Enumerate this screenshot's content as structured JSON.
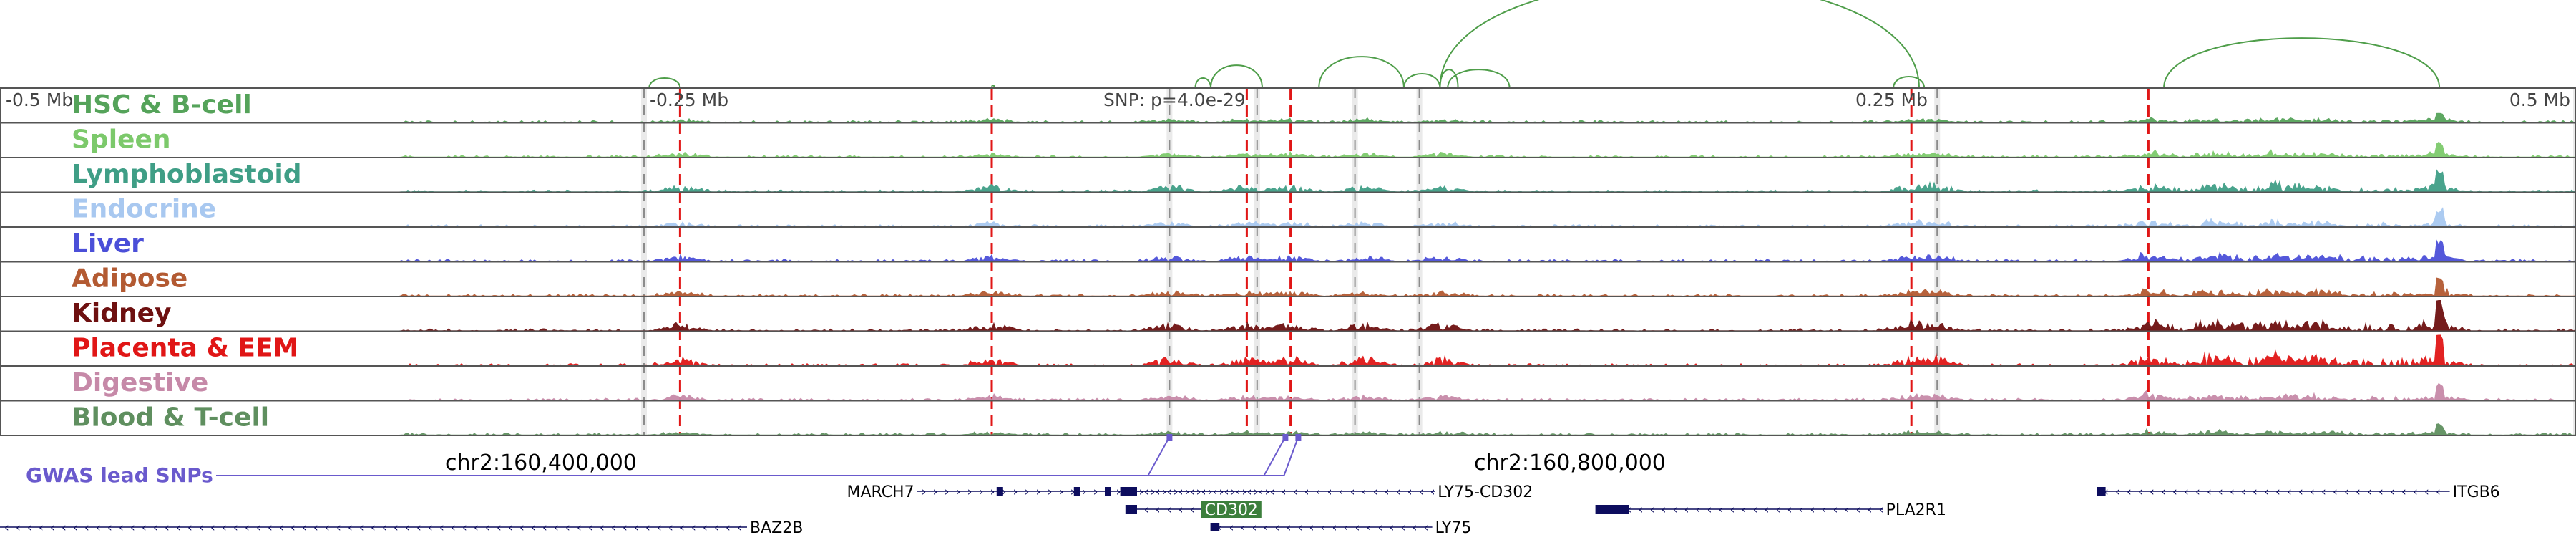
{
  "axis": {
    "ticks": [
      {
        "label": "-0.5 Mb",
        "mb": -0.5
      },
      {
        "label": "-0.25 Mb",
        "mb": -0.25
      },
      {
        "label": "0.25 Mb",
        "mb": 0.25
      },
      {
        "label": "0.5 Mb",
        "mb": 0.5
      }
    ],
    "range_mb": [
      -0.5,
      0.5
    ]
  },
  "lead_snp": {
    "label": "SNP: p=4.0e-29",
    "mb": 0.0
  },
  "tracks": [
    {
      "name": "HSC & B-cell",
      "color": "#55a35a",
      "seed": 11,
      "scale": 0.35
    },
    {
      "name": "Spleen",
      "color": "#7cc96b",
      "seed": 12,
      "scale": 0.45
    },
    {
      "name": "Lymphoblastoid",
      "color": "#3f9e86",
      "seed": 13,
      "scale": 0.8
    },
    {
      "name": "Endocrine",
      "color": "#a8c8f0",
      "seed": 14,
      "scale": 0.55
    },
    {
      "name": "Liver",
      "color": "#4b4fd8",
      "seed": 15,
      "scale": 0.7
    },
    {
      "name": "Adipose",
      "color": "#b35a32",
      "seed": 16,
      "scale": 0.6
    },
    {
      "name": "Kidney",
      "color": "#6e1010",
      "seed": 17,
      "scale": 0.95
    },
    {
      "name": "Placenta & EEM",
      "color": "#e01616",
      "seed": 18,
      "scale": 1.0
    },
    {
      "name": "Digestive",
      "color": "#c689a8",
      "seed": 19,
      "scale": 0.6
    },
    {
      "name": "Blood & T-cell",
      "color": "#5f8f5f",
      "seed": 20,
      "scale": 0.35
    }
  ],
  "red_markers_mb": [
    -0.236,
    -0.115,
    -0.016,
    0.001,
    0.242,
    0.334
  ],
  "grey_markers_mb": [
    -0.25,
    -0.046,
    -0.012,
    0.026,
    0.051,
    0.252,
    0.5
  ],
  "gwas": {
    "label": "GWAS lead SNPs",
    "coord_left": "chr2:160,400,000",
    "coord_right": "chr2:160,800,000",
    "snps_mb": [
      -0.046,
      -0.001,
      0.004
    ]
  },
  "arcs": [
    {
      "from": -0.248,
      "to": -0.236,
      "height": 14
    },
    {
      "from": -0.115,
      "to": -0.114,
      "height": 4
    },
    {
      "from": -0.036,
      "to": -0.03,
      "height": 14
    },
    {
      "from": -0.03,
      "to": -0.01,
      "height": 32
    },
    {
      "from": 0.012,
      "to": 0.045,
      "height": 44
    },
    {
      "from": 0.045,
      "to": 0.059,
      "height": 20
    },
    {
      "from": 0.059,
      "to": 0.245,
      "height": 150
    },
    {
      "from": 0.059,
      "to": 0.066,
      "height": 26
    },
    {
      "from": 0.062,
      "to": 0.086,
      "height": 26
    },
    {
      "from": 0.235,
      "to": 0.247,
      "height": 16
    },
    {
      "from": 0.34,
      "to": 0.447,
      "height": 70
    }
  ],
  "genes": [
    {
      "name": "MARCH7",
      "start": -0.144,
      "end": -0.005,
      "strand": "+",
      "row": 0,
      "label_side": "left",
      "exons": [
        -0.112,
        -0.082,
        -0.07,
        -0.064,
        -0.062
      ]
    },
    {
      "name": "LY75-CD302",
      "start": -0.062,
      "end": 0.057,
      "strand": "-",
      "row": 0,
      "label_side": "right",
      "exons": [
        -0.062,
        -0.06
      ]
    },
    {
      "name": "ITGB6",
      "start": 0.315,
      "end": 0.451,
      "strand": "-",
      "row": 0,
      "label_side": "right",
      "exons": [
        0.315,
        0.316
      ]
    },
    {
      "name": "CD302",
      "start": -0.062,
      "end": -0.02,
      "strand": "-",
      "row": 1,
      "label_side": "box",
      "exons": [
        -0.062,
        -0.06
      ]
    },
    {
      "name": "PLA2R1",
      "start": 0.121,
      "end": 0.231,
      "strand": "-",
      "row": 1,
      "label_side": "right",
      "exons": [
        0.121,
        0.123,
        0.125,
        0.127,
        0.129,
        0.131
      ]
    },
    {
      "name": "BAZ2B",
      "start": -0.5,
      "end": -0.21,
      "strand": "-",
      "row": 2,
      "label_side": "right",
      "exons": []
    },
    {
      "name": "LY75",
      "start": -0.029,
      "end": 0.056,
      "strand": "-",
      "row": 2,
      "label_side": "right",
      "exons": [
        -0.029,
        -0.028
      ]
    }
  ],
  "colors": {
    "track_border": "#555555",
    "arc": "#4f9e4a",
    "red_marker": "#e01616",
    "grey_marker": "#bfbfbf",
    "gwas": "#6a5acd",
    "gene": "#0d0d5e",
    "cd302_box": "#3c7f3c"
  }
}
